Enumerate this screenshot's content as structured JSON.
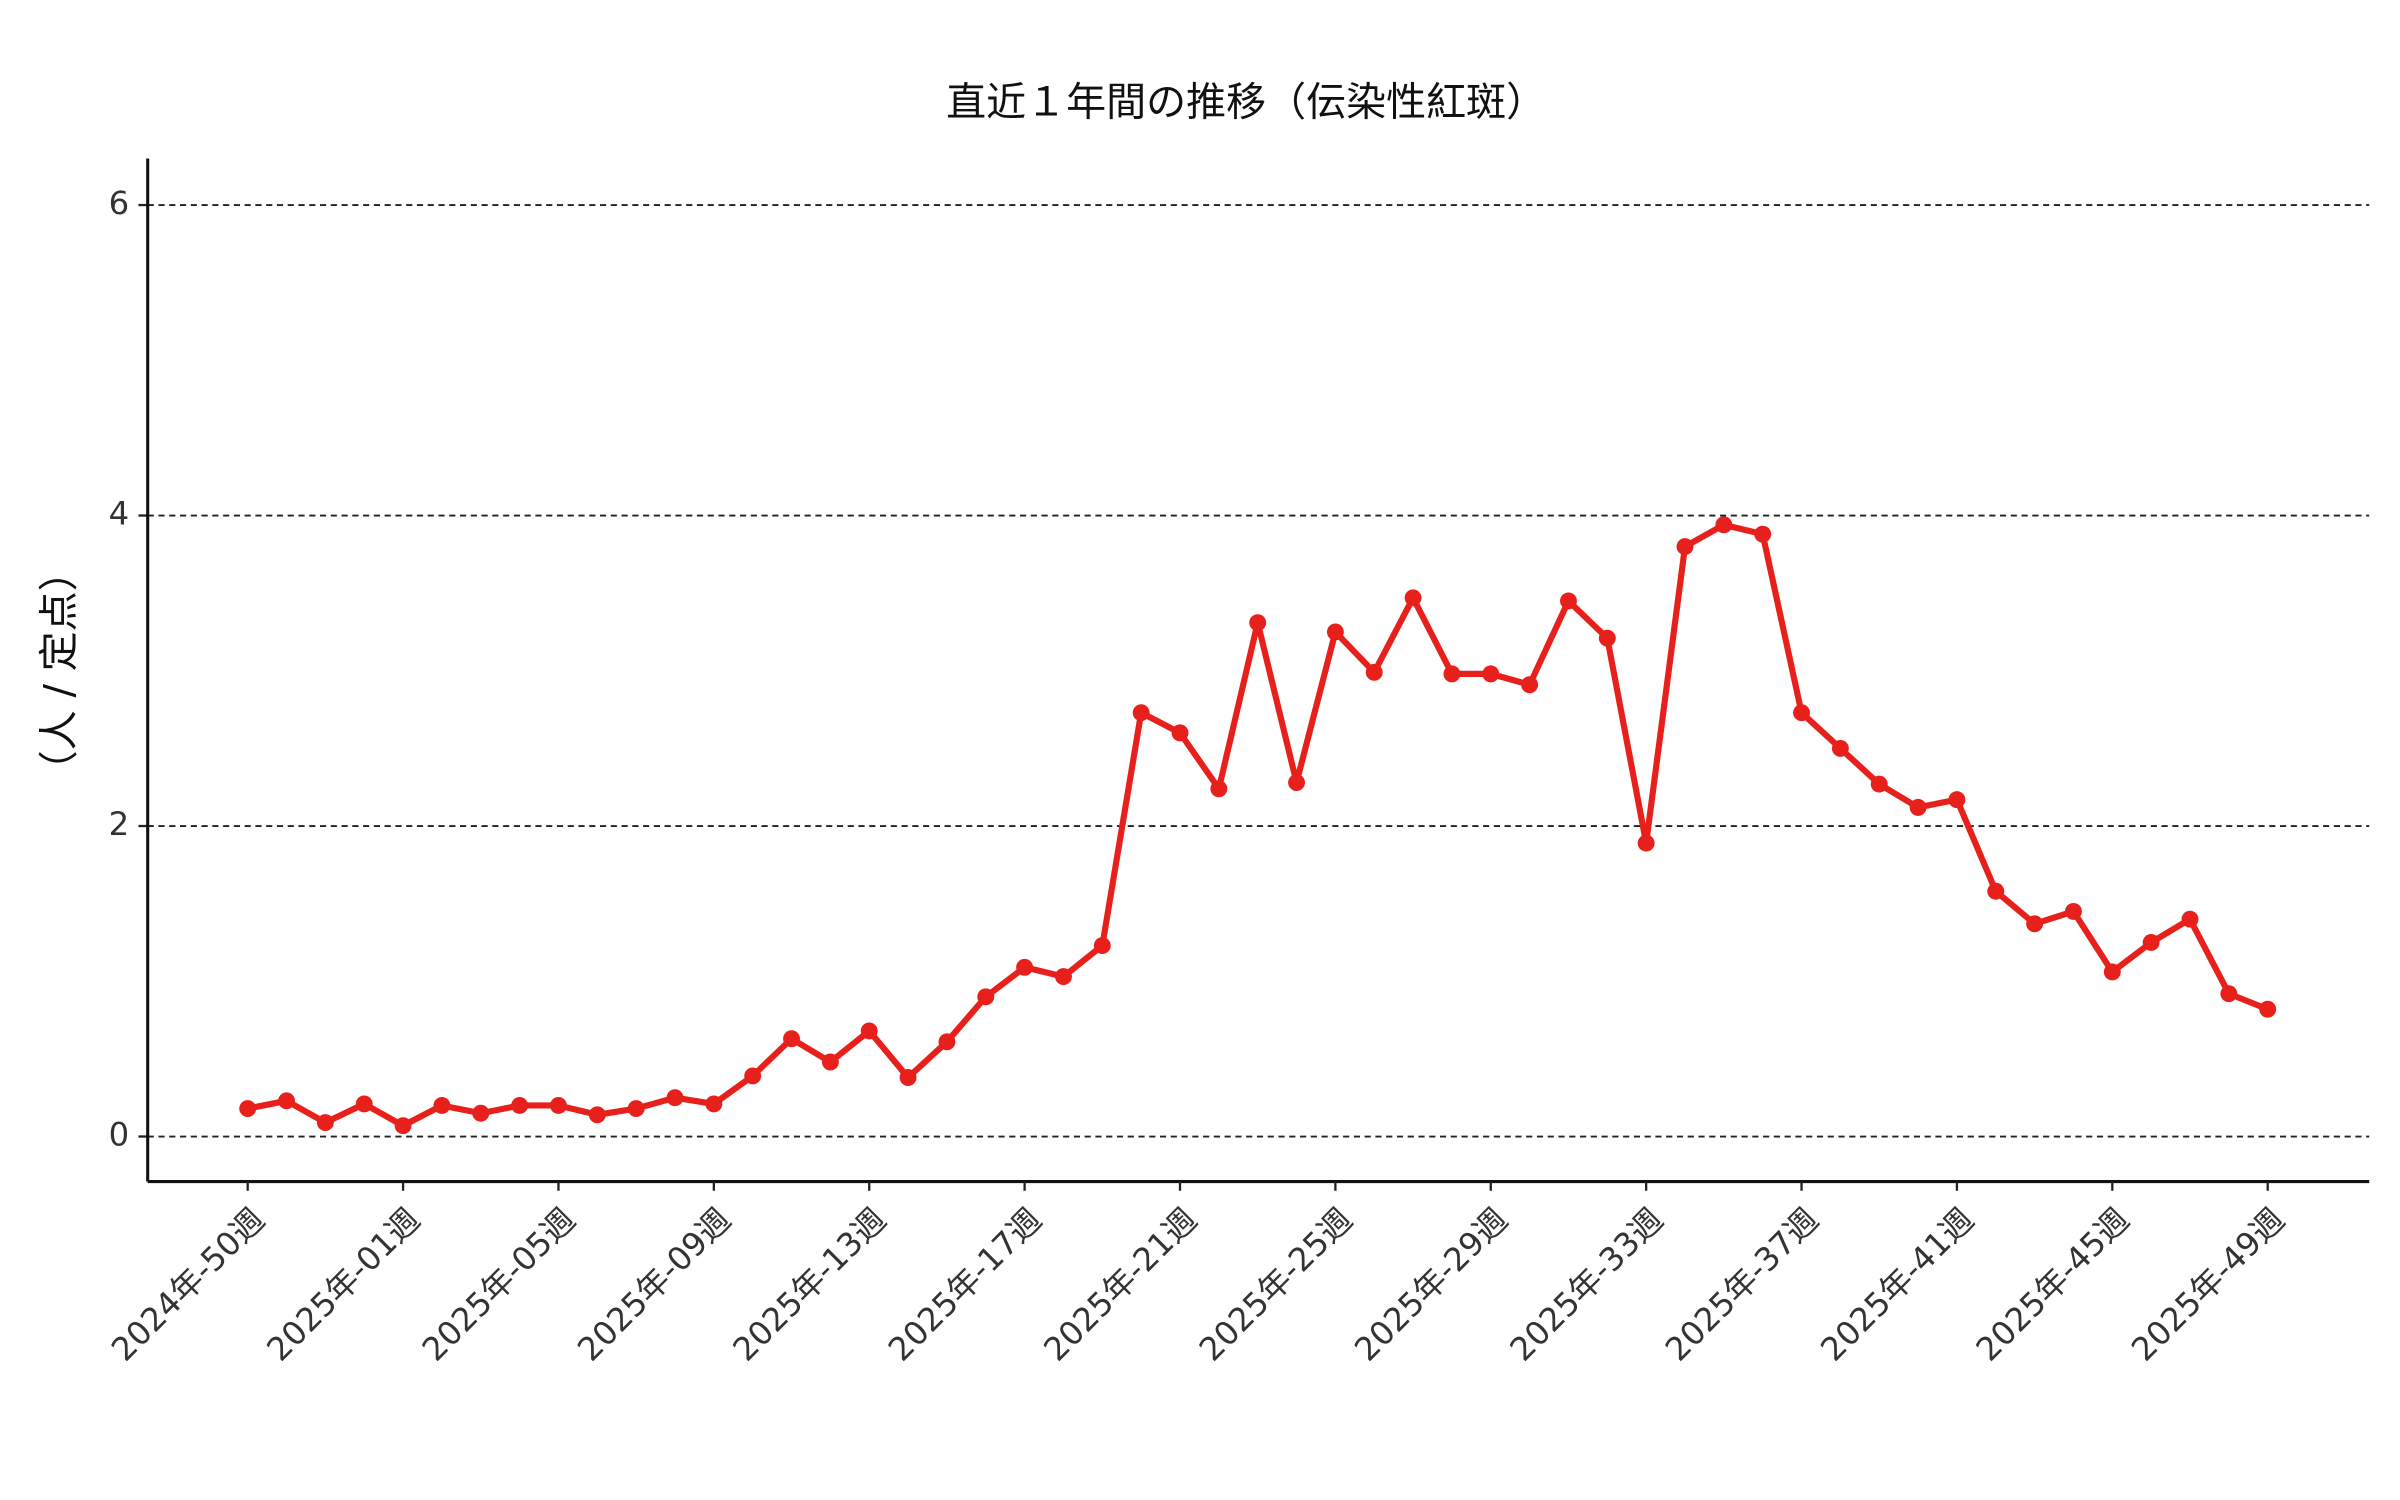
{
  "chart_data": {
    "type": "line",
    "title": "直近１年間の推移（伝染性紅斑）",
    "y_label": "（人 / 定点）",
    "categories": [
      "2024年-50週",
      null,
      null,
      null,
      "2025年-01週",
      null,
      null,
      null,
      "2025年-05週",
      null,
      null,
      null,
      "2025年-09週",
      null,
      null,
      null,
      "2025年-13週",
      null,
      null,
      null,
      "2025年-17週",
      null,
      null,
      null,
      "2025年-21週",
      null,
      null,
      null,
      "2025年-25週",
      null,
      null,
      null,
      "2025年-29週",
      null,
      null,
      null,
      "2025年-33週",
      null,
      null,
      null,
      "2025年-37週",
      null,
      null,
      null,
      "2025年-41週",
      null,
      null,
      null,
      "2025年-45週",
      null,
      null,
      null,
      "2025年-49週"
    ],
    "series": [
      {
        "color": "#e8201c",
        "values": [
          0.18,
          0.23,
          0.09,
          0.21,
          0.07,
          0.2,
          0.15,
          0.2,
          0.2,
          0.14,
          0.18,
          0.25,
          0.21,
          0.39,
          0.63,
          0.48,
          0.68,
          0.38,
          0.61,
          0.9,
          1.09,
          1.03,
          1.23,
          2.73,
          2.6,
          2.24,
          3.31,
          2.28,
          3.25,
          2.99,
          3.47,
          2.98,
          2.98,
          2.91,
          3.45,
          3.21,
          1.89,
          3.8,
          3.94,
          3.88,
          2.73,
          2.5,
          2.27,
          2.12,
          2.17,
          1.58,
          1.37,
          1.45,
          1.06,
          1.25,
          1.4,
          0.92,
          0.82
        ]
      }
    ],
    "ylim": [
      -0.29,
      6.3
    ],
    "yticks": [
      0,
      2,
      4,
      6
    ],
    "grid": true
  }
}
